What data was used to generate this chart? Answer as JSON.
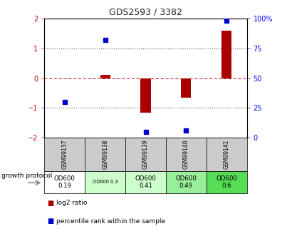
{
  "title": "GDS2593 / 3382",
  "samples": [
    "GSM99137",
    "GSM99138",
    "GSM99139",
    "GSM99140",
    "GSM99141"
  ],
  "log2_ratio": [
    0.0,
    0.12,
    -1.15,
    -0.65,
    1.6
  ],
  "percentile_rank": [
    30,
    82,
    5,
    6,
    98
  ],
  "ylim_left": [
    -2,
    2
  ],
  "ylim_right": [
    0,
    100
  ],
  "yticks_left": [
    -2,
    -1,
    0,
    1,
    2
  ],
  "yticks_right": [
    0,
    25,
    50,
    75,
    100
  ],
  "bar_color": "#aa0000",
  "dot_color": "#0000cc",
  "hline_color": "#cc0000",
  "dotted_color": "#555555",
  "growth_protocol_labels": [
    "OD600\n0.19",
    "OD600 0.3",
    "OD600\n0.41",
    "OD600\n0.49",
    "OD600\n0.6"
  ],
  "cell_colors": [
    "#ffffff",
    "#ccffcc",
    "#ccffcc",
    "#99ee99",
    "#55dd55"
  ],
  "cell_fontsize_small": [
    false,
    true,
    false,
    false,
    false
  ],
  "header_bg": "#cccccc"
}
